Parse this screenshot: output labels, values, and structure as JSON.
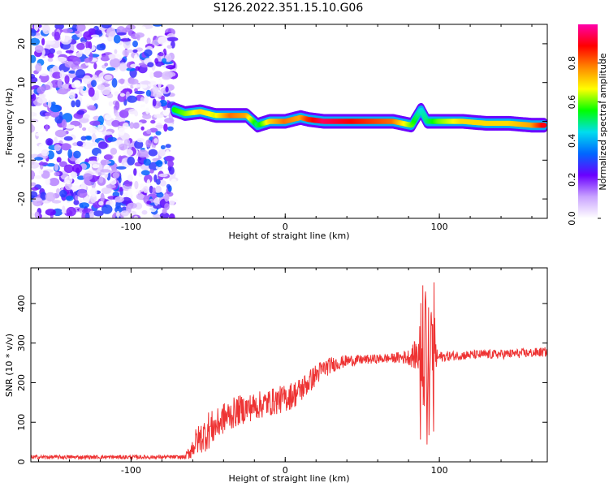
{
  "title": "S126.2022.351.15.10.G06",
  "chart_data": [
    {
      "type": "heatmap",
      "xlabel": "Height of straight line (km)",
      "ylabel": "Frequency (Hz)",
      "xlim": [
        -165,
        170
      ],
      "ylim": [
        -25,
        25
      ],
      "x_ticks": [
        -100,
        0,
        100
      ],
      "y_ticks": [
        -20,
        -10,
        0,
        10,
        20
      ],
      "colorbar": {
        "label": "Normalized spectral amplitude",
        "range": [
          0,
          1
        ],
        "ticks": [
          0.0,
          0.2,
          0.4,
          0.6,
          0.8
        ],
        "colors": [
          "#ffffff",
          "#c9a3ff",
          "#6a00ff",
          "#0066ff",
          "#00ddee",
          "#00ff00",
          "#ffff00",
          "#ff8800",
          "#ff0000",
          "#ff00aa"
        ]
      },
      "noise_region": {
        "x": [
          -165,
          -72
        ],
        "amplitude_range": [
          0.0,
          0.35
        ]
      },
      "signal_trace": {
        "x": [
          -72,
          -65,
          -55,
          -45,
          -35,
          -25,
          -18,
          -10,
          0,
          10,
          15,
          25,
          40,
          55,
          70,
          82,
          88,
          92,
          100,
          115,
          130,
          145,
          160,
          168
        ],
        "frequency": [
          3,
          2,
          2.5,
          1.5,
          1.5,
          1.5,
          -1,
          0,
          0,
          1,
          0.5,
          0,
          0,
          0,
          0,
          -1,
          3,
          0,
          0,
          0,
          -0.5,
          -0.5,
          -1,
          -1
        ],
        "amplitude": [
          0.55,
          0.6,
          0.7,
          0.65,
          0.8,
          0.75,
          0.5,
          0.7,
          0.8,
          0.75,
          0.85,
          0.95,
          0.9,
          0.85,
          0.8,
          0.6,
          0.45,
          0.5,
          0.6,
          0.7,
          0.7,
          0.7,
          0.75,
          0.9
        ]
      }
    },
    {
      "type": "line",
      "xlabel": "Height of straight line (km)",
      "ylabel": "SNR (10 * v/v)",
      "xlim": [
        -165,
        170
      ],
      "ylim": [
        0,
        490
      ],
      "x_ticks": [
        -100,
        0,
        100
      ],
      "y_ticks": [
        0,
        100,
        200,
        300,
        400
      ],
      "color": "#ee3333",
      "series": [
        {
          "x": [
            -165,
            -120,
            -90,
            -75,
            -65,
            -62,
            -58,
            -52,
            -50,
            -45,
            -40,
            -35,
            -30,
            -20,
            -10,
            0,
            8,
            15,
            20,
            25,
            30,
            40,
            50,
            60,
            70,
            80,
            85,
            88,
            90,
            91,
            92,
            93,
            95,
            98,
            100,
            110,
            120,
            140,
            160,
            170
          ],
          "y": [
            12,
            12,
            12,
            12,
            12,
            25,
            50,
            70,
            80,
            90,
            110,
            120,
            130,
            140,
            150,
            160,
            175,
            200,
            220,
            235,
            245,
            255,
            258,
            260,
            262,
            265,
            270,
            280,
            200,
            470,
            40,
            380,
            300,
            260,
            265,
            268,
            270,
            272,
            275,
            278
          ],
          "noise": [
            5,
            5,
            5,
            5,
            5,
            20,
            35,
            45,
            50,
            40,
            40,
            40,
            38,
            35,
            35,
            35,
            35,
            30,
            28,
            25,
            20,
            15,
            12,
            12,
            12,
            20,
            40,
            80,
            40,
            40,
            40,
            40,
            80,
            30,
            14,
            12,
            12,
            12,
            12,
            12
          ]
        }
      ]
    }
  ]
}
